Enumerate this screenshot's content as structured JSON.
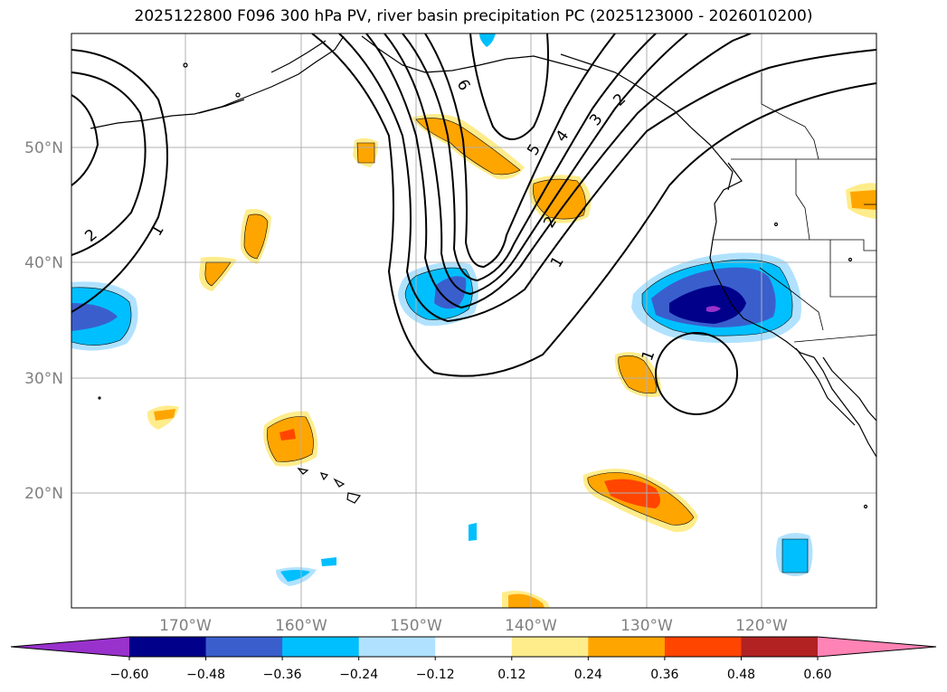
{
  "title": "2025122800 F096 300 hPa PV, river basin precipitation PC (2025123000 - 2026010200)",
  "axes": {
    "lat_labels": [
      "50°N",
      "40°N",
      "30°N",
      "20°N"
    ],
    "lon_labels": [
      "170°W",
      "160°W",
      "150°W",
      "140°W",
      "130°W",
      "120°W"
    ]
  },
  "pv_contour_labels": [
    "1",
    "2",
    "1",
    "2",
    "3",
    "4",
    "5",
    "6",
    "2",
    "1",
    "1"
  ],
  "colorbar": {
    "levels": [
      "−0.60",
      "−0.48",
      "−0.36",
      "−0.24",
      "−0.12",
      "0.12",
      "0.24",
      "0.36",
      "0.48",
      "0.60"
    ],
    "colors": [
      "#9932cc",
      "#00008b",
      "#3a5fcd",
      "#00bfff",
      "#b0e2ff",
      "#ffffff",
      "#ffec8b",
      "#ffa500",
      "#ff4500",
      "#b22222",
      "#ff83b4"
    ]
  }
}
